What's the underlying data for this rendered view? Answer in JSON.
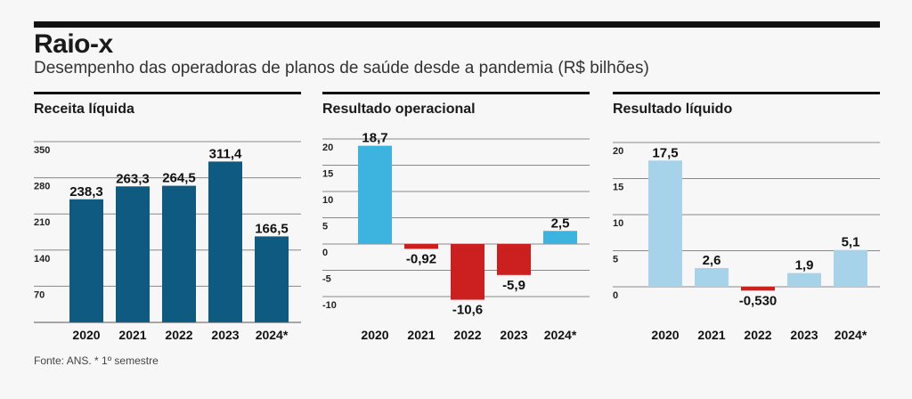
{
  "header": {
    "title": "Raio-x",
    "subtitle": "Desempenho das operadoras de planos de saúde desde a pandemia (R$ bilhões)"
  },
  "footer": {
    "source": "Fonte: ANS. * 1º semestre"
  },
  "chart_data": [
    {
      "type": "bar",
      "title": "Receita líquida",
      "categories": [
        "2020",
        "2021",
        "2022",
        "2023",
        "2024*"
      ],
      "values": [
        238.3,
        263.3,
        264.5,
        311.4,
        166.5
      ],
      "labels": [
        "238,3",
        "263,3",
        "264,5",
        "311,4",
        "166,5"
      ],
      "yticks": [
        70,
        140,
        210,
        280,
        350
      ],
      "ytick_labels": [
        "70",
        "140",
        "210",
        "280",
        "350"
      ],
      "ylim": [
        0,
        350
      ],
      "colors": [
        "#0f5a80",
        "#0f5a80",
        "#0f5a80",
        "#0f5a80",
        "#0f5a80"
      ]
    },
    {
      "type": "bar",
      "title": "Resultado operacional",
      "categories": [
        "2020",
        "2021",
        "2022",
        "2023",
        "2024*"
      ],
      "values": [
        18.7,
        -0.92,
        -10.6,
        -5.9,
        2.5
      ],
      "labels": [
        "18,7",
        "-0,92",
        "-10,6",
        "-5,9",
        "2,5"
      ],
      "yticks": [
        -10,
        -5,
        0,
        5,
        10,
        15,
        20
      ],
      "ytick_labels": [
        "-10",
        "-5",
        "0",
        "5",
        "10",
        "15",
        "20"
      ],
      "ylim": [
        -12,
        20
      ],
      "colors": [
        "#3db4e0",
        "#cc1f1f",
        "#cc1f1f",
        "#cc1f1f",
        "#3db4e0"
      ]
    },
    {
      "type": "bar",
      "title": "Resultado líquido",
      "categories": [
        "2020",
        "2021",
        "2022",
        "2023",
        "2024*"
      ],
      "values": [
        17.5,
        2.6,
        -0.53,
        1.9,
        5.1
      ],
      "labels": [
        "17,5",
        "2,6",
        "-0,530",
        "1,9",
        "5,1"
      ],
      "yticks": [
        0,
        5,
        10,
        15,
        20
      ],
      "ytick_labels": [
        "0",
        "5",
        "10",
        "15",
        "20"
      ],
      "ylim": [
        -4,
        20
      ],
      "colors": [
        "#a7d3ea",
        "#a7d3ea",
        "#cc1f1f",
        "#a7d3ea",
        "#a7d3ea"
      ]
    }
  ]
}
